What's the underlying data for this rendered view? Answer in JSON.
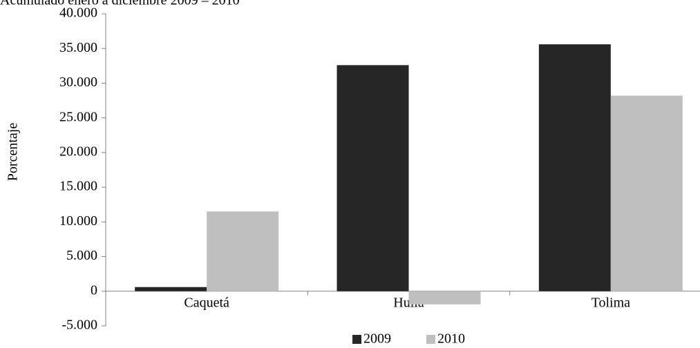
{
  "chart_data": {
    "type": "bar",
    "subtitle": "Acumulado enero a diciembre 2009 – 2010",
    "y_label": "Porcentaje",
    "categories": [
      "Caquetá",
      "Huila",
      "Tolima"
    ],
    "series": [
      {
        "name": "2009",
        "color": "#262626",
        "values": [
          600,
          32600,
          35600
        ]
      },
      {
        "name": "2010",
        "color": "#bfbfbf",
        "values": [
          11500,
          -1900,
          28200
        ]
      }
    ],
    "ylim": [
      -5000,
      40000
    ],
    "yticks": [
      {
        "value": -5000,
        "label": "-5.000"
      },
      0,
      {
        "value": 5000,
        "label": "5.000"
      },
      {
        "value": 10000,
        "label": "10.000"
      },
      {
        "value": 15000,
        "label": "15.000"
      },
      {
        "value": 20000,
        "label": "20.000"
      },
      {
        "value": 25000,
        "label": "25.000"
      },
      {
        "value": 30000,
        "label": "30.000"
      },
      {
        "value": 35000,
        "label": "35.000"
      },
      {
        "value": 40000,
        "label": "40.000"
      }
    ],
    "grid": false,
    "legend": "bottom"
  }
}
